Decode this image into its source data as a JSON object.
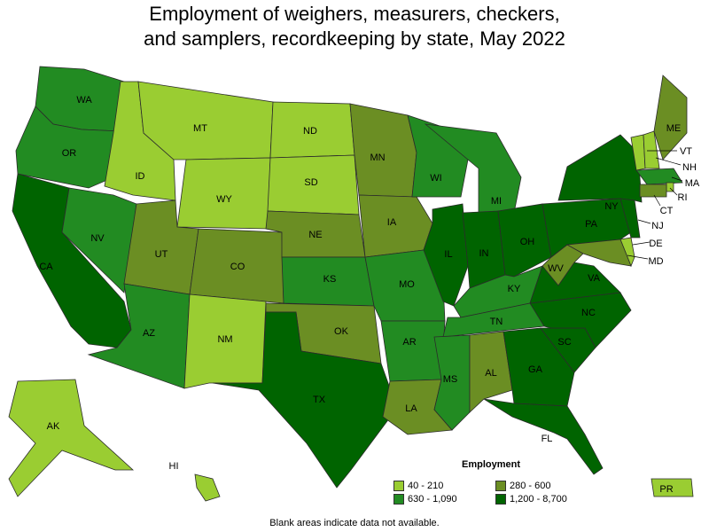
{
  "title_line1": "Employment of weighers, measurers, checkers,",
  "title_line2": "and samplers, recordkeeping by state, May 2022",
  "legend": {
    "title": "Employment",
    "items": [
      {
        "label": "40 - 210",
        "color": "#9acd32"
      },
      {
        "label": "280 - 600",
        "color": "#6b8e23"
      },
      {
        "label": "630 - 1,090",
        "color": "#228b22"
      },
      {
        "label": "1,200 - 8,700",
        "color": "#006400"
      }
    ]
  },
  "footnote": "Blank areas indicate data not available.",
  "states": [
    {
      "abbr": "WA",
      "bin": 2
    },
    {
      "abbr": "OR",
      "bin": 2
    },
    {
      "abbr": "CA",
      "bin": 3
    },
    {
      "abbr": "NV",
      "bin": 2
    },
    {
      "abbr": "ID",
      "bin": 0
    },
    {
      "abbr": "MT",
      "bin": 0
    },
    {
      "abbr": "WY",
      "bin": 0
    },
    {
      "abbr": "UT",
      "bin": 1
    },
    {
      "abbr": "CO",
      "bin": 1
    },
    {
      "abbr": "AZ",
      "bin": 2
    },
    {
      "abbr": "NM",
      "bin": 0
    },
    {
      "abbr": "ND",
      "bin": 0
    },
    {
      "abbr": "SD",
      "bin": 0
    },
    {
      "abbr": "NE",
      "bin": 1
    },
    {
      "abbr": "KS",
      "bin": 2
    },
    {
      "abbr": "OK",
      "bin": 1
    },
    {
      "abbr": "TX",
      "bin": 3
    },
    {
      "abbr": "MN",
      "bin": 1
    },
    {
      "abbr": "IA",
      "bin": 1
    },
    {
      "abbr": "MO",
      "bin": 2
    },
    {
      "abbr": "AR",
      "bin": 2
    },
    {
      "abbr": "LA",
      "bin": 1
    },
    {
      "abbr": "WI",
      "bin": 2
    },
    {
      "abbr": "IL",
      "bin": 3
    },
    {
      "abbr": "MI",
      "bin": 2
    },
    {
      "abbr": "IN",
      "bin": 3
    },
    {
      "abbr": "OH",
      "bin": 3
    },
    {
      "abbr": "KY",
      "bin": 2
    },
    {
      "abbr": "TN",
      "bin": 2
    },
    {
      "abbr": "MS",
      "bin": 2
    },
    {
      "abbr": "AL",
      "bin": 1
    },
    {
      "abbr": "GA",
      "bin": 3
    },
    {
      "abbr": "FL",
      "bin": 3
    },
    {
      "abbr": "SC",
      "bin": 3
    },
    {
      "abbr": "NC",
      "bin": 3
    },
    {
      "abbr": "VA",
      "bin": 3
    },
    {
      "abbr": "WV",
      "bin": 1
    },
    {
      "abbr": "PA",
      "bin": 3
    },
    {
      "abbr": "NY",
      "bin": 3
    },
    {
      "abbr": "VT",
      "bin": 0
    },
    {
      "abbr": "NH",
      "bin": 0
    },
    {
      "abbr": "ME",
      "bin": 1
    },
    {
      "abbr": "MA",
      "bin": 2
    },
    {
      "abbr": "RI",
      "bin": 0
    },
    {
      "abbr": "CT",
      "bin": 1
    },
    {
      "abbr": "NJ",
      "bin": 3
    },
    {
      "abbr": "DE",
      "bin": 0
    },
    {
      "abbr": "MD",
      "bin": 1
    },
    {
      "abbr": "AK",
      "bin": 0
    },
    {
      "abbr": "HI",
      "bin": 0
    },
    {
      "abbr": "PR",
      "bin": 0
    }
  ]
}
